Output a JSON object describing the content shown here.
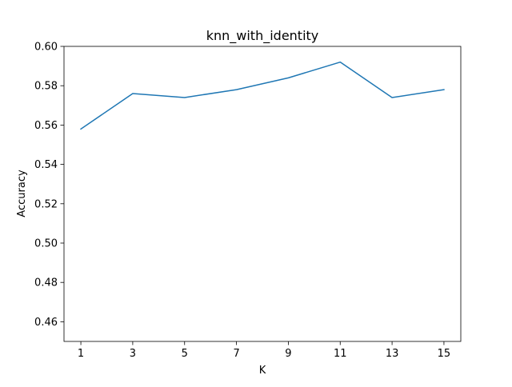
{
  "chart_data": {
    "type": "line",
    "title": "knn_with_identity",
    "xlabel": "K",
    "ylabel": "Accuracy",
    "x": [
      1,
      3,
      5,
      7,
      9,
      11,
      13,
      15
    ],
    "series": [
      {
        "values": [
          0.558,
          0.576,
          0.574,
          0.578,
          0.584,
          0.592,
          0.574,
          0.578
        ],
        "color": "#1f77b4"
      }
    ],
    "xlim": [
      0.35,
      15.65
    ],
    "ylim": [
      0.45,
      0.6
    ],
    "xticks": [
      1,
      3,
      5,
      7,
      9,
      11,
      13,
      15
    ],
    "xtick_labels": [
      "1",
      "3",
      "5",
      "7",
      "9",
      "11",
      "13",
      "15"
    ],
    "yticks": [
      0.46,
      0.48,
      0.5,
      0.52,
      0.54,
      0.56,
      0.58,
      0.6
    ],
    "ytick_labels": [
      "0.46",
      "0.48",
      "0.50",
      "0.52",
      "0.54",
      "0.56",
      "0.58",
      "0.60"
    ],
    "grid": false,
    "legend": "none"
  }
}
